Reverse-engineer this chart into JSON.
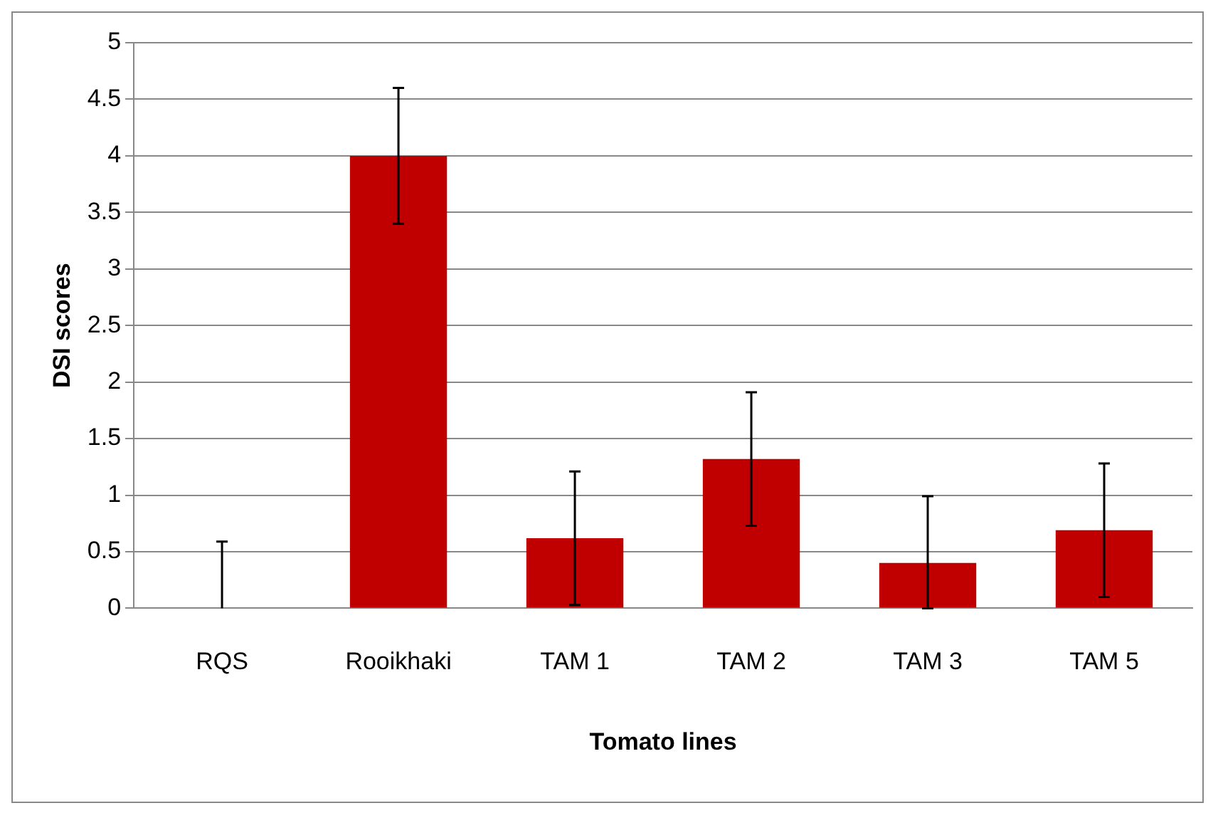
{
  "chart_data": {
    "type": "bar",
    "xlabel": "Tomato lines",
    "ylabel": "DSI scores",
    "categories": [
      "RQS",
      "Rooikhaki",
      "TAM 1",
      "TAM 2",
      "TAM 3",
      "TAM 5"
    ],
    "values": [
      0,
      4.0,
      0.62,
      1.32,
      0.4,
      0.69
    ],
    "errors": [
      [
        0,
        0.59
      ],
      0.6,
      0.59,
      0.59,
      [
        0,
        0.99
      ],
      0.59
    ],
    "color": "#c00000",
    "ylim": [
      0,
      5
    ],
    "yticks": [
      0,
      0.5,
      1,
      1.5,
      2,
      2.5,
      3,
      3.5,
      4,
      4.5,
      5
    ],
    "grid": "y",
    "legend": false
  }
}
